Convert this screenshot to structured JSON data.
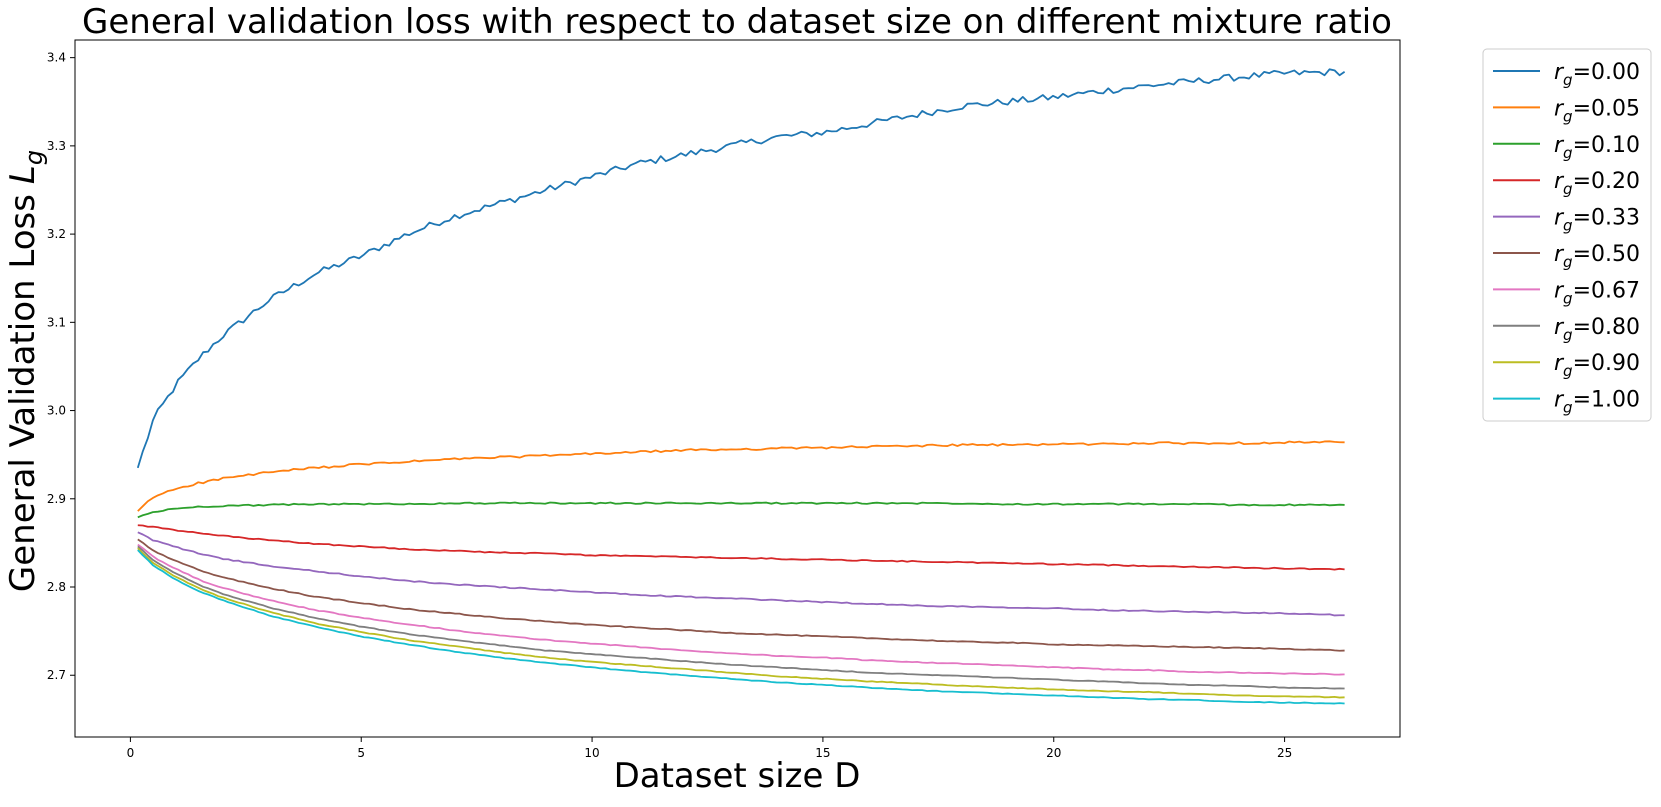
{
  "chart_data": {
    "type": "line",
    "title": "General validation loss with respect to dataset size on different mixture ratio",
    "xlabel": "Dataset size D",
    "ylabel": "General Validation Loss",
    "ylabel_symbol": "L",
    "ylabel_subscript": "g",
    "xlim": [
      -1.2,
      27.5
    ],
    "ylim": [
      2.63,
      3.42
    ],
    "xticks": [
      0,
      5,
      10,
      15,
      20,
      25
    ],
    "yticks": [
      2.7,
      2.8,
      2.9,
      3.0,
      3.1,
      3.2,
      3.3,
      3.4
    ],
    "xtick_labels": [
      "0",
      "5",
      "10",
      "15",
      "20",
      "25"
    ],
    "ytick_labels": [
      "2.7",
      "2.8",
      "2.9",
      "3.0",
      "3.1",
      "3.2",
      "3.3",
      "3.4"
    ],
    "grid": false,
    "legend_position": "outside-right-top",
    "x": [
      0.16,
      0.5,
      1,
      1.5,
      2,
      3,
      4,
      5,
      6,
      7,
      8,
      9,
      10,
      11,
      12,
      13,
      14,
      15,
      16,
      17,
      18,
      19,
      20,
      21,
      22,
      23,
      24,
      25,
      26.3
    ],
    "series": [
      {
        "name_symbol": "r",
        "name_subscript": "g",
        "name_value": "=0.00",
        "color": "#1f77b4",
        "noise": 0.004,
        "values": [
          2.935,
          2.99,
          3.03,
          3.06,
          3.085,
          3.125,
          3.155,
          3.175,
          3.2,
          3.22,
          3.235,
          3.25,
          3.265,
          3.28,
          3.29,
          3.3,
          3.31,
          3.315,
          3.325,
          3.335,
          3.345,
          3.35,
          3.355,
          3.362,
          3.368,
          3.373,
          3.378,
          3.382,
          3.384
        ]
      },
      {
        "name_symbol": "r",
        "name_subscript": "g",
        "name_value": "=0.05",
        "color": "#ff7f0e",
        "noise": 0.0012,
        "values": [
          2.886,
          2.902,
          2.912,
          2.918,
          2.923,
          2.93,
          2.935,
          2.939,
          2.942,
          2.945,
          2.947,
          2.949,
          2.951,
          2.953,
          2.955,
          2.956,
          2.957,
          2.958,
          2.959,
          2.96,
          2.961,
          2.961,
          2.962,
          2.962,
          2.963,
          2.963,
          2.963,
          2.964,
          2.964
        ]
      },
      {
        "name_symbol": "r",
        "name_subscript": "g",
        "name_value": "=0.10",
        "color": "#2ca02c",
        "noise": 0.0008,
        "values": [
          2.879,
          2.885,
          2.889,
          2.891,
          2.892,
          2.893,
          2.894,
          2.894,
          2.894,
          2.895,
          2.895,
          2.895,
          2.895,
          2.895,
          2.895,
          2.895,
          2.895,
          2.895,
          2.895,
          2.895,
          2.895,
          2.894,
          2.894,
          2.894,
          2.894,
          2.894,
          2.893,
          2.893,
          2.893
        ]
      },
      {
        "name_symbol": "r",
        "name_subscript": "g",
        "name_value": "=0.20",
        "color": "#d62728",
        "noise": 0.0006,
        "values": [
          2.87,
          2.868,
          2.864,
          2.861,
          2.858,
          2.853,
          2.849,
          2.846,
          2.843,
          2.841,
          2.839,
          2.838,
          2.836,
          2.835,
          2.834,
          2.833,
          2.832,
          2.831,
          2.83,
          2.829,
          2.828,
          2.827,
          2.826,
          2.825,
          2.824,
          2.823,
          2.822,
          2.821,
          2.82
        ]
      },
      {
        "name_symbol": "r",
        "name_subscript": "g",
        "name_value": "=0.33",
        "color": "#9467bd",
        "noise": 0.0006,
        "values": [
          2.862,
          2.853,
          2.845,
          2.838,
          2.832,
          2.824,
          2.818,
          2.812,
          2.807,
          2.803,
          2.8,
          2.797,
          2.794,
          2.791,
          2.789,
          2.787,
          2.785,
          2.783,
          2.781,
          2.779,
          2.778,
          2.777,
          2.776,
          2.774,
          2.773,
          2.772,
          2.771,
          2.77,
          2.768
        ]
      },
      {
        "name_symbol": "r",
        "name_subscript": "g",
        "name_value": "=0.50",
        "color": "#8c564b",
        "noise": 0.0005,
        "values": [
          2.854,
          2.841,
          2.829,
          2.819,
          2.811,
          2.799,
          2.789,
          2.782,
          2.775,
          2.77,
          2.765,
          2.761,
          2.757,
          2.754,
          2.751,
          2.748,
          2.746,
          2.744,
          2.742,
          2.74,
          2.738,
          2.737,
          2.735,
          2.734,
          2.733,
          2.732,
          2.731,
          2.73,
          2.728
        ]
      },
      {
        "name_symbol": "r",
        "name_subscript": "g",
        "name_value": "=0.67",
        "color": "#e377c2",
        "noise": 0.0005,
        "values": [
          2.848,
          2.834,
          2.82,
          2.808,
          2.799,
          2.785,
          2.774,
          2.765,
          2.758,
          2.751,
          2.745,
          2.74,
          2.736,
          2.732,
          2.728,
          2.725,
          2.722,
          2.72,
          2.717,
          2.715,
          2.713,
          2.711,
          2.709,
          2.707,
          2.706,
          2.704,
          2.703,
          2.702,
          2.701
        ]
      },
      {
        "name_symbol": "r",
        "name_subscript": "g",
        "name_value": "=0.80",
        "color": "#7f7f7f",
        "noise": 0.0004,
        "values": [
          2.846,
          2.83,
          2.815,
          2.802,
          2.792,
          2.777,
          2.765,
          2.755,
          2.747,
          2.74,
          2.734,
          2.728,
          2.724,
          2.72,
          2.716,
          2.712,
          2.709,
          2.706,
          2.703,
          2.701,
          2.699,
          2.697,
          2.695,
          2.693,
          2.691,
          2.689,
          2.688,
          2.686,
          2.685
        ]
      },
      {
        "name_symbol": "r",
        "name_subscript": "g",
        "name_value": "=0.90",
        "color": "#bcbd22",
        "noise": 0.0004,
        "values": [
          2.844,
          2.827,
          2.811,
          2.798,
          2.788,
          2.772,
          2.759,
          2.749,
          2.74,
          2.733,
          2.726,
          2.72,
          2.715,
          2.711,
          2.707,
          2.703,
          2.699,
          2.696,
          2.693,
          2.691,
          2.688,
          2.686,
          2.684,
          2.682,
          2.681,
          2.679,
          2.677,
          2.676,
          2.675
        ]
      },
      {
        "name_symbol": "r",
        "name_subscript": "g",
        "name_value": "=1.00",
        "color": "#17becf",
        "noise": 0.0004,
        "values": [
          2.842,
          2.824,
          2.808,
          2.795,
          2.785,
          2.768,
          2.755,
          2.744,
          2.735,
          2.727,
          2.72,
          2.714,
          2.709,
          2.704,
          2.7,
          2.696,
          2.692,
          2.689,
          2.686,
          2.683,
          2.681,
          2.679,
          2.677,
          2.675,
          2.673,
          2.672,
          2.67,
          2.669,
          2.668
        ]
      }
    ]
  }
}
